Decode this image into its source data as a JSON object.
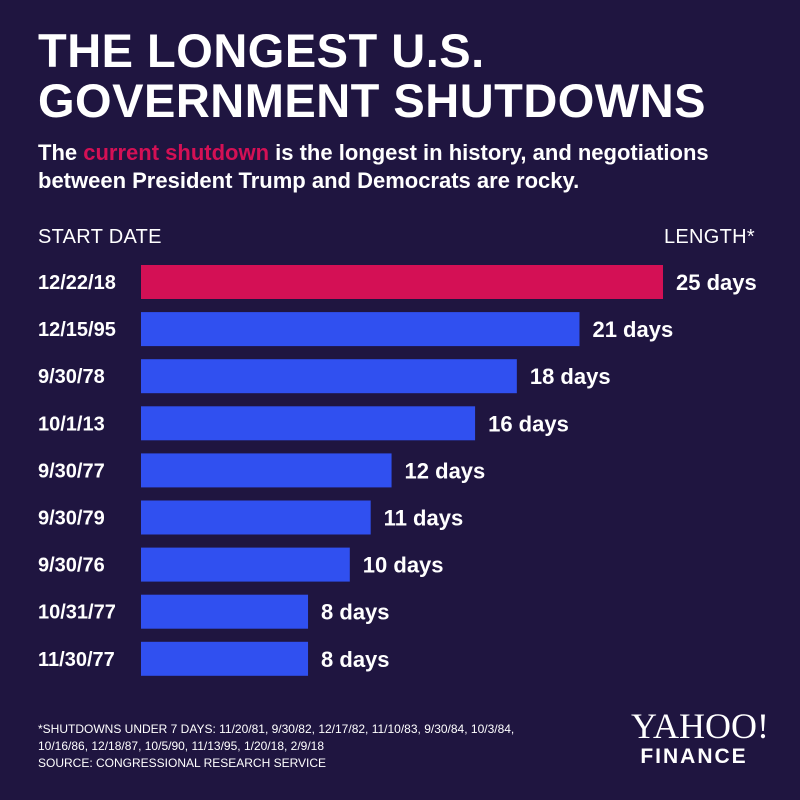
{
  "header": {
    "title_line1": "THE LONGEST U.S.",
    "title_line2": "GOVERNMENT SHUTDOWNS",
    "subtitle_pre": "The ",
    "subtitle_highlight": "current shutdown",
    "subtitle_post": " is the longest in history, and negotiations between President Trump and Democrats are rocky."
  },
  "column_headers": {
    "start": "START DATE",
    "length": "LENGTH*"
  },
  "colors": {
    "background": "#1f1540",
    "current": "#d41055",
    "bar": "#3050f0",
    "text": "#ffffff"
  },
  "chart_data": {
    "type": "bar",
    "orientation": "horizontal",
    "categories": [
      "12/22/18",
      "12/15/95",
      "9/30/78",
      "10/1/13",
      "9/30/77",
      "9/30/79",
      "9/30/76",
      "10/31/77",
      "11/30/77"
    ],
    "values": [
      25,
      21,
      18,
      16,
      12,
      11,
      10,
      8,
      8
    ],
    "value_labels": [
      "25 days",
      "21 days",
      "18 days",
      "16 days",
      "12 days",
      "11 days",
      "10 days",
      "8 days",
      "8 days"
    ],
    "highlight_index": 0,
    "xlim": [
      0,
      25
    ]
  },
  "footnote": {
    "line1": "*SHUTDOWNS UNDER 7 DAYS: 11/20/81, 9/30/82, 12/17/82, 11/10/83, 9/30/84, 10/3/84,",
    "line2": "10/16/86, 12/18/87, 10/5/90, 11/13/95, 1/20/18, 2/9/18",
    "source": "SOURCE:  CONGRESSIONAL RESEARCH SERVICE"
  },
  "logo": {
    "line1": "YAHOO!",
    "line2": "FINANCE"
  }
}
